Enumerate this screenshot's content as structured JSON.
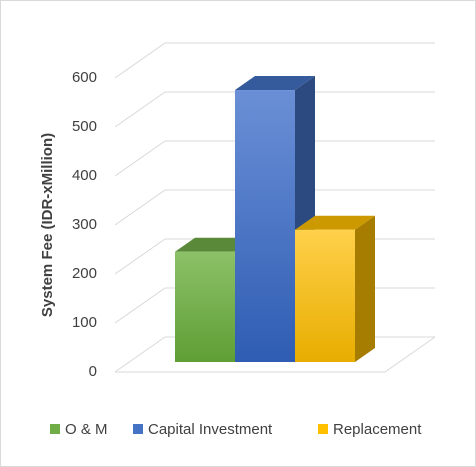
{
  "chart_data": {
    "type": "bar3d",
    "y_label": "System Fee (IDR-xMillion)",
    "categories": [
      null
    ],
    "series": [
      {
        "name": "O & M",
        "color": "#70ad47",
        "values": [
          225
        ]
      },
      {
        "name": "Capital Investment",
        "color": "#4472c4",
        "values": [
          555
        ]
      },
      {
        "name": "Replacement",
        "color": "#ffc000",
        "values": [
          270
        ]
      }
    ],
    "ylim": [
      0,
      600
    ],
    "yticks": [
      0,
      100,
      200,
      300,
      400,
      500,
      600
    ],
    "grid": true,
    "legend": "bottom"
  }
}
